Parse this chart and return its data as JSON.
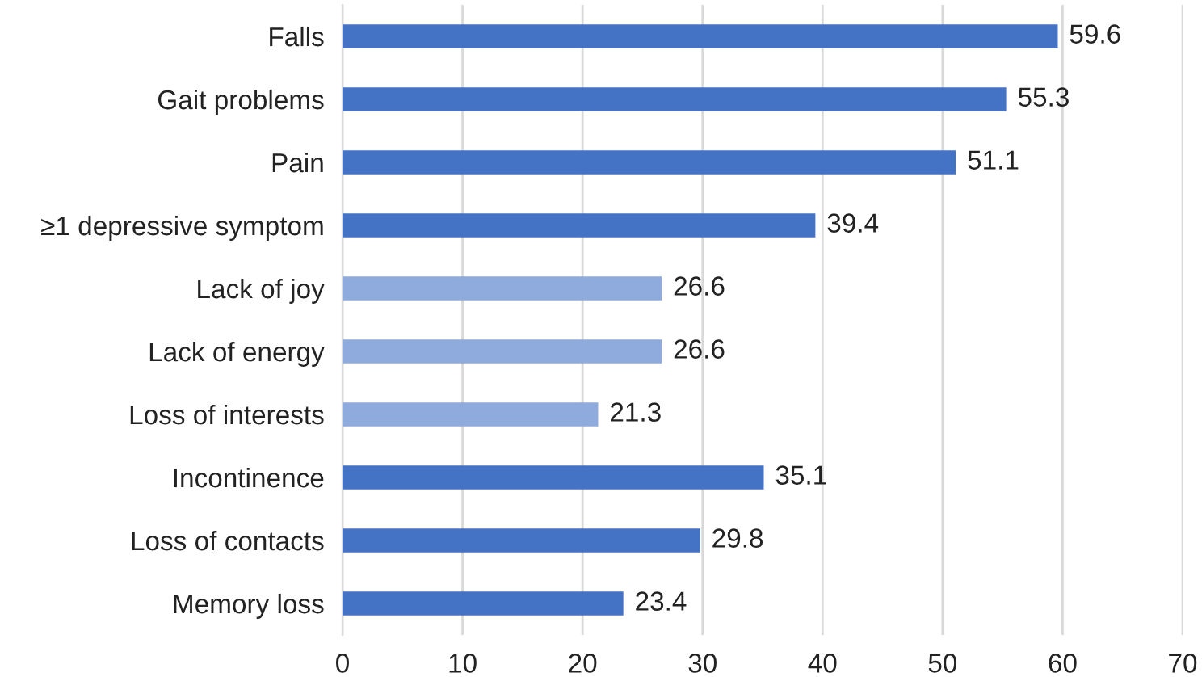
{
  "chart_data": {
    "type": "bar",
    "orientation": "horizontal",
    "categories": [
      "Falls",
      "Gait problems",
      "Pain",
      "≥1 depressive symptom",
      "Lack of joy",
      "Lack of energy",
      "Loss of interests",
      "Incontinence",
      "Loss of contacts",
      "Memory loss"
    ],
    "values": [
      59.6,
      55.3,
      51.1,
      39.4,
      26.6,
      26.6,
      21.3,
      35.1,
      29.8,
      23.4
    ],
    "colors": [
      "#4472c4",
      "#4472c4",
      "#4472c4",
      "#4472c4",
      "#8faadc",
      "#8faadc",
      "#8faadc",
      "#4472c4",
      "#4472c4",
      "#4472c4"
    ],
    "xlim": [
      0,
      70
    ],
    "xticks": [
      0,
      10,
      20,
      30,
      40,
      50,
      60,
      70
    ],
    "grid": "x",
    "data_labels": true
  }
}
